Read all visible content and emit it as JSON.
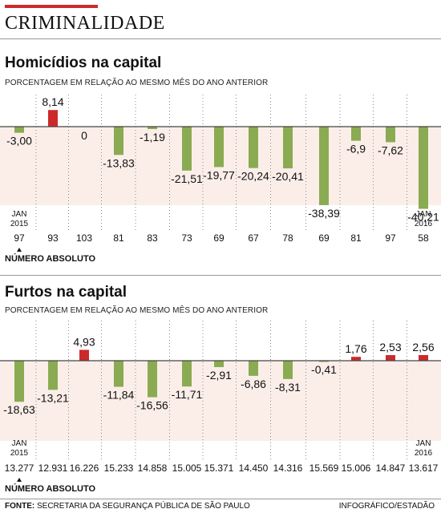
{
  "section_title": "CRIMINALIDADE",
  "colors": {
    "positive": "#cc2a2a",
    "negative": "#8aab52",
    "band": "#fbeee9",
    "accent": "#cc2a2a"
  },
  "chart_data": [
    {
      "type": "bar",
      "title": "Homicídios na capital",
      "subtitle": "PORCENTAGEM EM RELAÇÃO AO MESMO MÊS DO ANO ANTERIOR",
      "value_labels": [
        "-3,00",
        "8,14",
        "0",
        "-13,83",
        "-1,19",
        "-21,51",
        "-19,77",
        "-20,24",
        "-20,41",
        "-38,39",
        "-6,9",
        "-7,62",
        "-40,21"
      ],
      "values": [
        -3.0,
        8.14,
        0,
        -13.83,
        -1.19,
        -21.51,
        -19.77,
        -20.24,
        -20.41,
        -38.39,
        -6.9,
        -7.62,
        -40.21
      ],
      "absolute": [
        "97",
        "93",
        "103",
        "81",
        "83",
        "73",
        "69",
        "67",
        "78",
        "69",
        "81",
        "97",
        "58"
      ],
      "start_label": [
        "JAN",
        "2015"
      ],
      "end_label": [
        "JAN",
        "2016"
      ],
      "absolute_label": "NÚMERO ABSOLUTO"
    },
    {
      "type": "bar",
      "title": "Furtos na capital",
      "subtitle": "PORCENTAGEM EM RELAÇÃO AO MESMO MÊS DO ANO ANTERIOR",
      "value_labels": [
        "-18,63",
        "-13,21",
        "4,93",
        "-11,84",
        "-16,56",
        "-11,71",
        "-2,91",
        "-6,86",
        "-8,31",
        "-0,41",
        "1,76",
        "2,53",
        "2,56"
      ],
      "values": [
        -18.63,
        -13.21,
        4.93,
        -11.84,
        -16.56,
        -11.71,
        -2.91,
        -6.86,
        -8.31,
        -0.41,
        1.76,
        2.53,
        2.56
      ],
      "absolute": [
        "13.277",
        "12.931",
        "16.226",
        "15.233",
        "14.858",
        "15.005",
        "15.371",
        "14.450",
        "14.316",
        "15.569",
        "15.006",
        "14.847",
        "13.617"
      ],
      "start_label": [
        "JAN",
        "2015"
      ],
      "end_label": [
        "JAN",
        "2016"
      ],
      "absolute_label": "NÚMERO ABSOLUTO"
    }
  ],
  "footer": {
    "source_label": "FONTE:",
    "source_text": "SECRETARIA DA SEGURANÇA PÚBLICA DE SÃO PAULO",
    "credit": "INFOGRÁFICO/ESTADÃO"
  }
}
